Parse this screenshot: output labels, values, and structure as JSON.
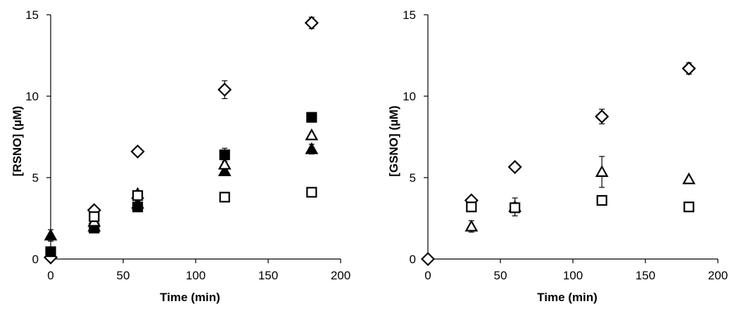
{
  "chart_data": [
    {
      "type": "scatter",
      "title": "",
      "xlabel": "Time (min)",
      "ylabel": "[RSNO] (µM)",
      "xlim": [
        0,
        200
      ],
      "ylim": [
        0,
        15
      ],
      "xticks": [
        "0",
        "50",
        "100",
        "150",
        "200"
      ],
      "yticks": [
        "0",
        "5",
        "10",
        "15"
      ],
      "grid": false,
      "series": [
        {
          "marker": "diamond-open",
          "x": [
            0,
            30,
            60,
            120,
            180
          ],
          "y": [
            0.1,
            3.0,
            6.6,
            10.4,
            14.5
          ],
          "err": [
            0,
            0,
            0,
            0.55,
            0.35
          ]
        },
        {
          "marker": "triangle-filled",
          "x": [
            0,
            30,
            60,
            120,
            180
          ],
          "y": [
            1.45,
            2.0,
            3.4,
            5.4,
            6.75
          ],
          "err": [
            0.35,
            0,
            0,
            0,
            0.3
          ]
        },
        {
          "marker": "square-filled",
          "x": [
            0,
            30,
            60,
            120,
            180
          ],
          "y": [
            0.45,
            1.9,
            3.2,
            6.4,
            8.7
          ],
          "err": [
            0,
            0,
            0,
            0.4,
            0
          ]
        },
        {
          "marker": "triangle-open",
          "x": [
            30,
            60,
            120,
            180
          ],
          "y": [
            2.3,
            4.0,
            5.8,
            7.6
          ],
          "err": [
            0,
            0,
            0,
            0
          ]
        },
        {
          "marker": "square-open",
          "x": [
            30,
            60,
            120,
            180
          ],
          "y": [
            2.6,
            3.9,
            3.8,
            4.1
          ],
          "err": [
            0,
            0,
            0,
            0
          ]
        }
      ]
    },
    {
      "type": "scatter",
      "title": "",
      "xlabel": "Time (min)",
      "ylabel": "[GSNO] (µM)",
      "xlim": [
        0,
        200
      ],
      "ylim": [
        0,
        15
      ],
      "xticks": [
        "0",
        "50",
        "100",
        "150",
        "200"
      ],
      "yticks": [
        "0",
        "5",
        "10",
        "15"
      ],
      "grid": false,
      "series": [
        {
          "marker": "diamond-open",
          "x": [
            0,
            30,
            60,
            120,
            180
          ],
          "y": [
            0.0,
            3.6,
            5.65,
            8.75,
            11.7
          ],
          "err": [
            0,
            0,
            0,
            0.45,
            0.35
          ]
        },
        {
          "marker": "triangle-open",
          "x": [
            30,
            60,
            120,
            180
          ],
          "y": [
            2.0,
            3.2,
            5.35,
            4.9
          ],
          "err": [
            0.35,
            0.55,
            0.95,
            0
          ]
        },
        {
          "marker": "square-open",
          "x": [
            30,
            60,
            120,
            180
          ],
          "y": [
            3.2,
            3.15,
            3.6,
            3.2
          ],
          "err": [
            0,
            0.3,
            0,
            0
          ]
        }
      ]
    }
  ]
}
